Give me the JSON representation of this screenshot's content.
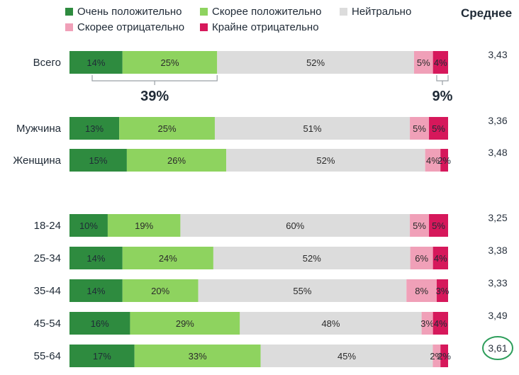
{
  "chart_data": {
    "type": "bar",
    "orientation": "horizontal",
    "stacked": true,
    "normalized": true,
    "value_unit": "%",
    "series": [
      {
        "name": "Очень положительно",
        "color": "#2e8b3f",
        "values": [
          14,
          13,
          15,
          10,
          14,
          14,
          16,
          17
        ]
      },
      {
        "name": "Скорее положительно",
        "color": "#8ed35f",
        "values": [
          25,
          25,
          26,
          19,
          24,
          20,
          29,
          33
        ]
      },
      {
        "name": "Нейтрально",
        "color": "#dcdcdc",
        "values": [
          52,
          51,
          52,
          60,
          52,
          55,
          48,
          45
        ]
      },
      {
        "name": "Скорее отрицательно",
        "color": "#f0a0b8",
        "values": [
          5,
          5,
          4,
          5,
          6,
          8,
          3,
          2
        ]
      },
      {
        "name": "Крайне отрицательно",
        "color": "#d6185b",
        "values": [
          4,
          5,
          2,
          5,
          4,
          3,
          4,
          2
        ]
      }
    ],
    "categories": [
      "Всего",
      "Мужчина",
      "Женщина",
      "18-24",
      "25-34",
      "35-44",
      "45-54",
      "55-64"
    ],
    "average_header": "Среднее",
    "averages": [
      "3,43",
      "3,36",
      "3,48",
      "3,25",
      "3,38",
      "3,33",
      "3,49",
      "3,61"
    ],
    "highlighted_average_index": 7,
    "highlight_color": "#2e9e5b",
    "annotations": [
      {
        "text": "39%",
        "category": "Всего",
        "spans_series": [
          0,
          1
        ]
      },
      {
        "text": "9%",
        "category": "Всего",
        "spans_series": [
          3,
          4
        ]
      }
    ]
  }
}
